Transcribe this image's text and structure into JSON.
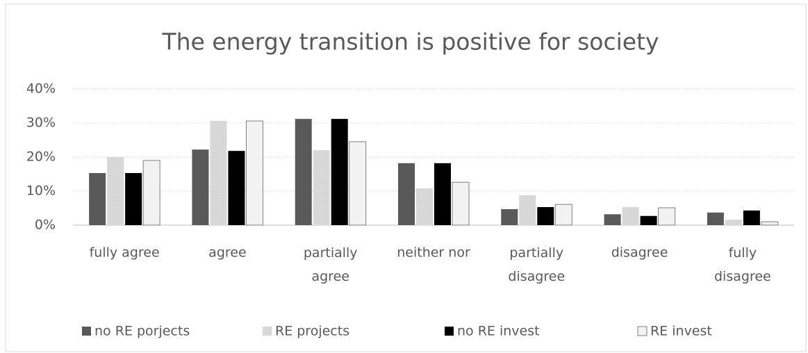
{
  "chart_data": {
    "type": "bar",
    "title": "The energy transition is positive for society",
    "categories": [
      "fully agree",
      "agree",
      "partially agree",
      "neither nor",
      "partially disagree",
      "disagree",
      "fully disagree"
    ],
    "series": [
      {
        "name": "no RE porjects",
        "color": "#595959",
        "values": [
          15.3,
          22.2,
          31.2,
          18.2,
          4.7,
          3.2,
          3.7
        ]
      },
      {
        "name": "RE projects",
        "color": "#d9d9d9",
        "values": [
          20,
          30.6,
          22,
          10.8,
          8.8,
          5.3,
          1.6
        ]
      },
      {
        "name": "no RE invest",
        "color": "#000000",
        "values": [
          15.3,
          21.8,
          31.2,
          18.2,
          5.3,
          2.7,
          4.3
        ]
      },
      {
        "name": "RE invest",
        "color": "#f2f2f2",
        "values": [
          19,
          30.6,
          24.5,
          12.6,
          6.1,
          5.1,
          1.0
        ]
      }
    ],
    "ylim": [
      0,
      40
    ],
    "yticks": [
      {
        "value": 0,
        "label": "0%"
      },
      {
        "value": 10,
        "label": "10%"
      },
      {
        "value": 20,
        "label": "20%"
      },
      {
        "value": 30,
        "label": "30%"
      },
      {
        "value": 40,
        "label": "40%"
      }
    ],
    "grid": true,
    "legend": "bottom"
  }
}
